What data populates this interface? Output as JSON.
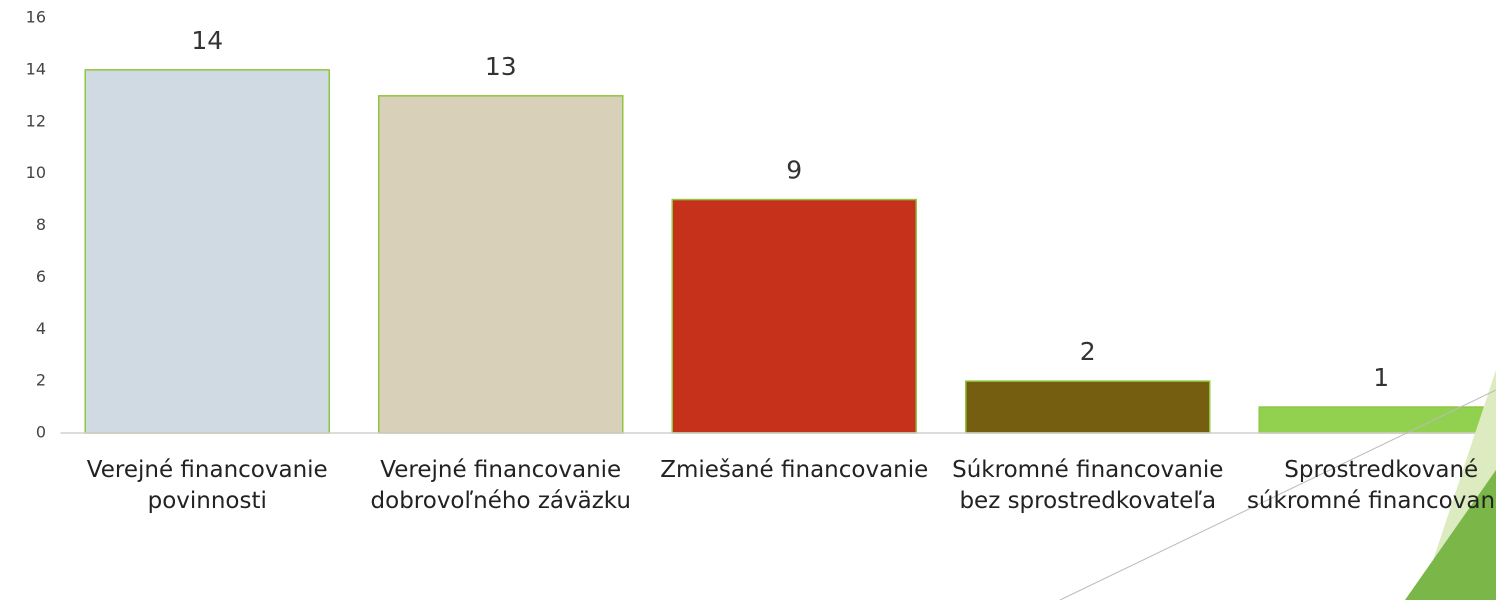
{
  "chart_data": {
    "type": "bar",
    "categories": [
      "Verejné financovanie povinnosti",
      "Verejné financovanie dobrovoľného záväzku",
      "Zmiešané financovanie",
      "Súkromné financovanie bez sprostredkovateľa",
      "Sprostredkované súkromné financovanie"
    ],
    "values": [
      14,
      13,
      9,
      2,
      1
    ],
    "colors": [
      "#cfdae3",
      "#d8d0b9",
      "#c5311a",
      "#765e10",
      "#92d050"
    ],
    "ylim": [
      0,
      16
    ],
    "yticks": [
      0,
      2,
      4,
      6,
      8,
      10,
      12,
      14,
      16
    ],
    "grid": false
  }
}
